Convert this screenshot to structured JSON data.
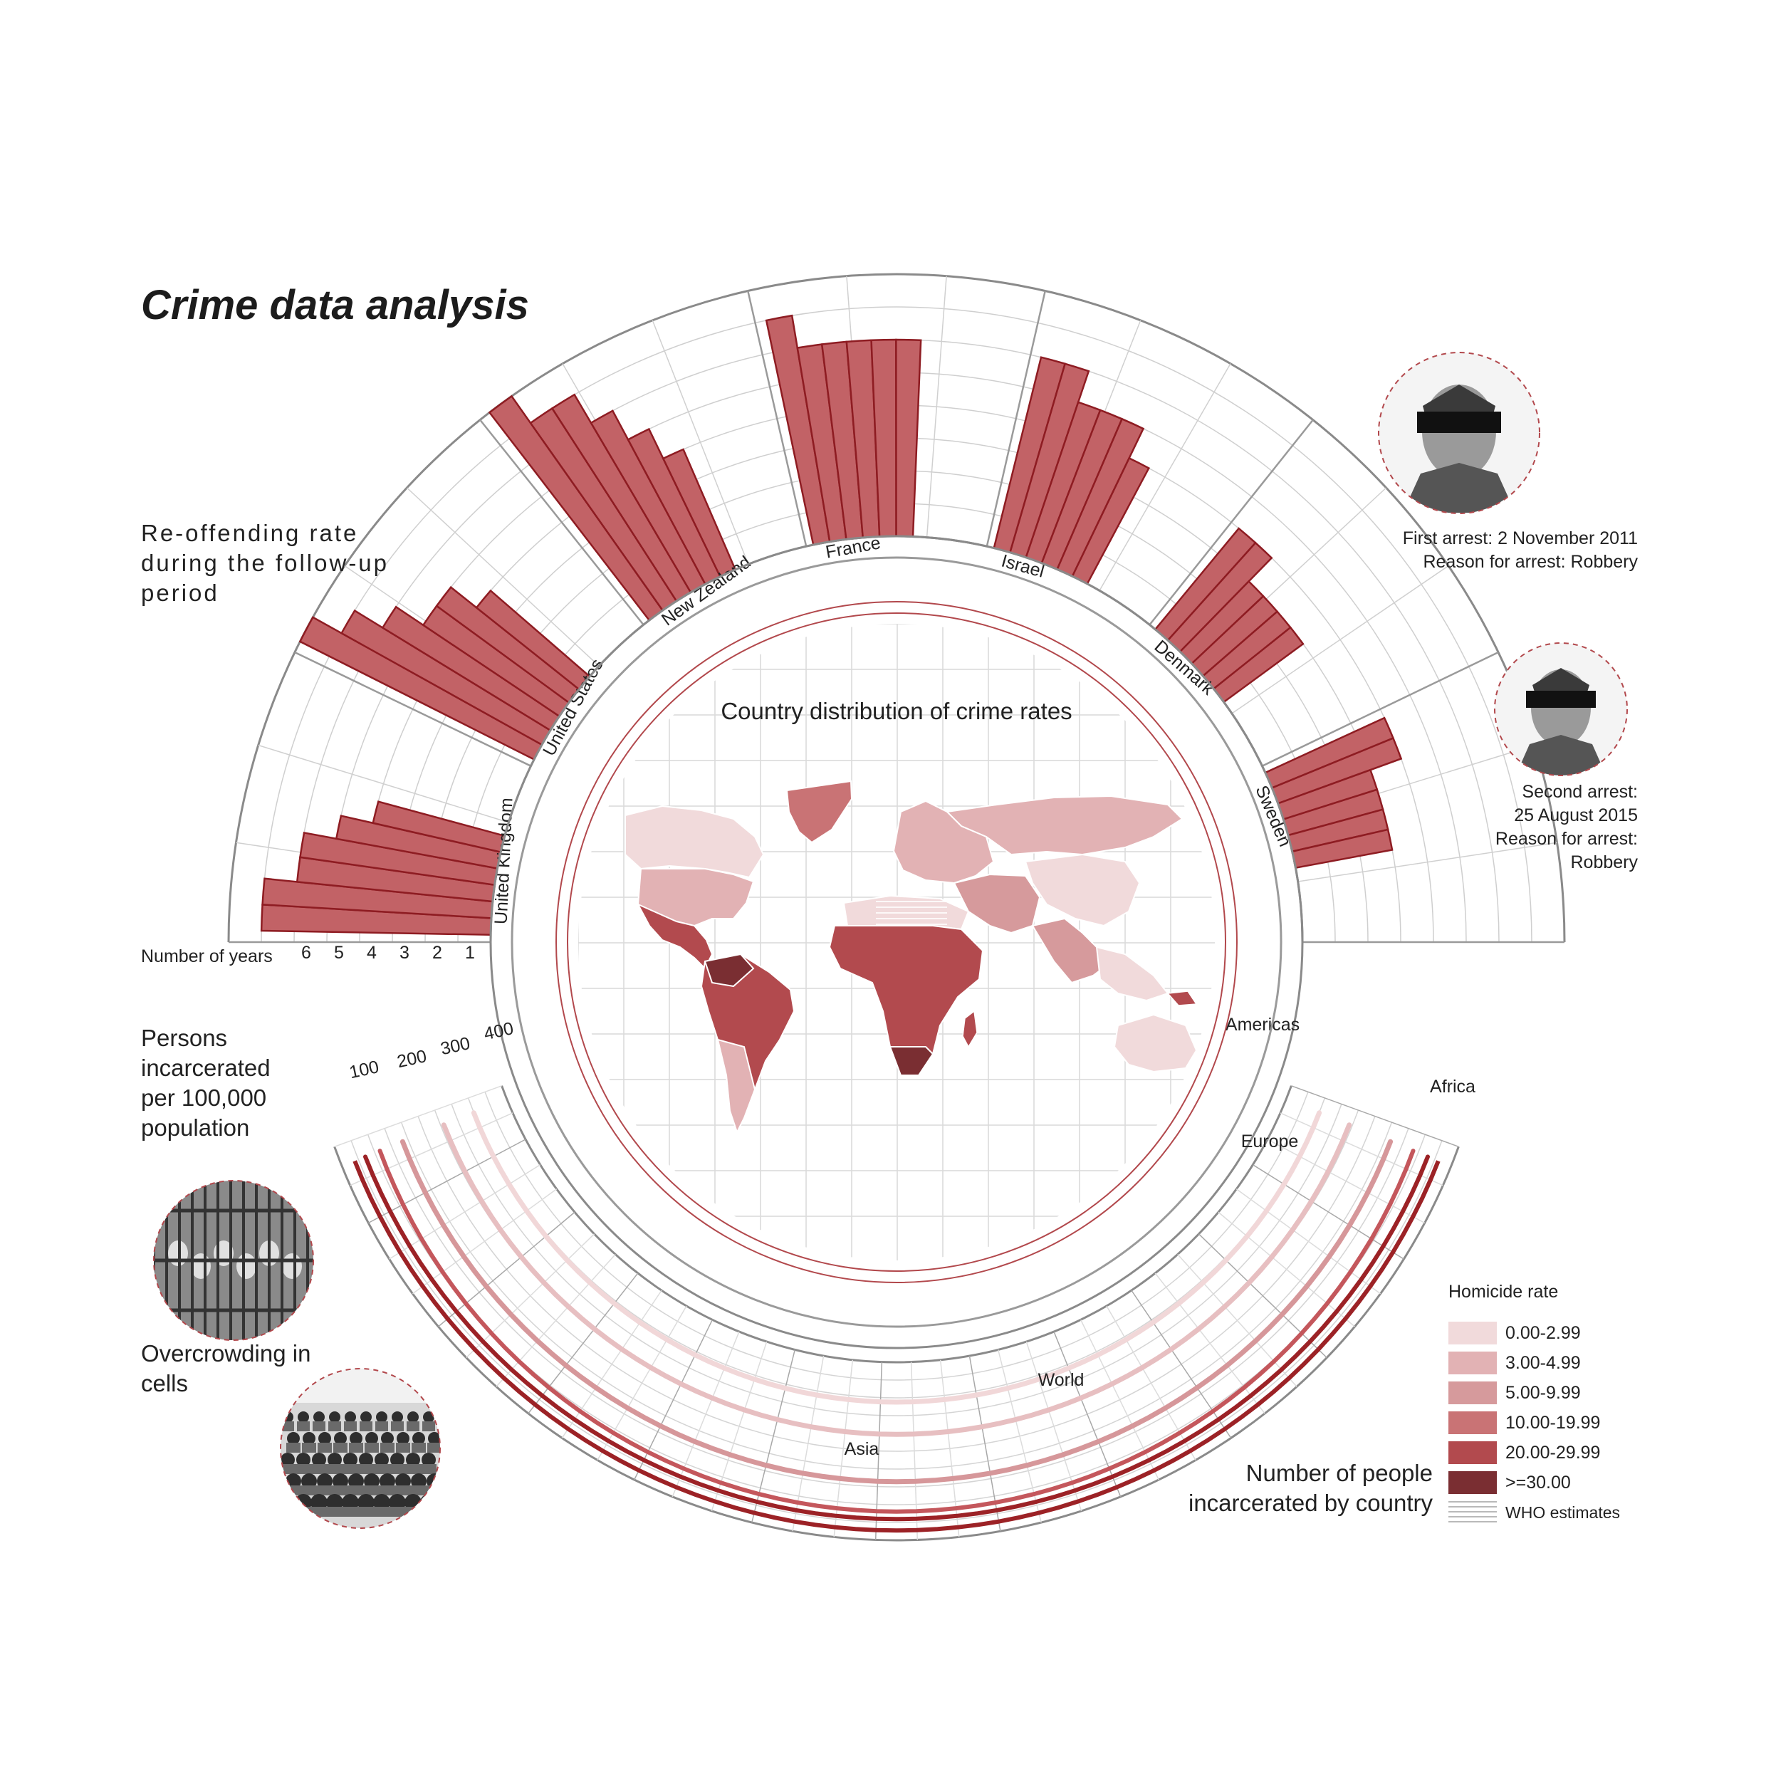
{
  "title": "Crime data analysis",
  "reoffending_label": "Re-offending rate during the follow-up period",
  "years_label": "Number of years",
  "incarcerated_label": "Persons incarcerated per 100,000 population",
  "overcrowding_label": "Overcrowding in cells",
  "map_title": "Country distribution of crime rates",
  "number_incarcerated_label": "Number of people incarcerated by country",
  "arrest1": {
    "line1": "First arrest: 2 November 2011",
    "line2": "Reason for arrest: Robbery"
  },
  "arrest2": {
    "line1": "Second arrest:",
    "line2": "25 August 2015",
    "line3": "Reason for arrest:",
    "line4": "Robbery"
  },
  "legend": {
    "title": "Homicide rate",
    "items": [
      {
        "label": "0.00-2.99",
        "color": "#f1dadb"
      },
      {
        "label": "3.00-4.99",
        "color": "#e2b2b4"
      },
      {
        "label": "5.00-9.99",
        "color": "#d69a9c"
      },
      {
        "label": "10.00-19.99",
        "color": "#c97375"
      },
      {
        "label": "20.00-29.99",
        "color": "#b24a4e"
      },
      {
        "label": ">=30.00",
        "color": "#7a2e32"
      }
    ],
    "hatch_label": "WHO estimates"
  },
  "icons": {
    "arrest_photo_1": "mugshot-icon",
    "arrest_photo_2": "mugshot-icon",
    "cell_photo": "prison-cell-photo-icon",
    "crowd_photo": "crowd-photo-icon"
  },
  "chart_data": [
    {
      "type": "bar",
      "subtype": "radial-stacked",
      "years_ticks": [
        6,
        5,
        4,
        3,
        2,
        1
      ],
      "categories": [
        "United Kingdom",
        "United States",
        "New Zealand",
        "France",
        "Israel",
        "Denmark",
        "Sweden"
      ],
      "series": [
        {
          "name": "1",
          "values": [
            4,
            4,
            4,
            6,
            4,
            3,
            3
          ]
        },
        {
          "name": "2",
          "values": [
            5,
            5,
            5,
            6,
            5,
            3,
            3
          ]
        },
        {
          "name": "3",
          "values": [
            6,
            5,
            6,
            6,
            5,
            3,
            3
          ]
        },
        {
          "name": "4",
          "values": [
            6,
            6,
            7,
            6,
            5,
            3,
            3
          ]
        },
        {
          "name": "5",
          "values": [
            7,
            7,
            7,
            6,
            6,
            4,
            4
          ]
        },
        {
          "name": "6",
          "values": [
            7,
            8,
            8,
            7,
            6,
            4,
            4
          ]
        }
      ],
      "color": "#c26266"
    },
    {
      "type": "line",
      "subtype": "radial",
      "scale_ticks": [
        100,
        200,
        300,
        400
      ],
      "series": [
        {
          "name": "Americas",
          "value": 400,
          "color": "#f1d7d8"
        },
        {
          "name": "Europe",
          "value": 320,
          "color": "#e7bfc1"
        },
        {
          "name": "World",
          "value": 210,
          "color": "#d6979a"
        },
        {
          "name": "Asia",
          "value": 150,
          "color": "#c4575c"
        },
        {
          "name": "Africa",
          "value": 110,
          "color": "#9c2226"
        }
      ]
    }
  ]
}
